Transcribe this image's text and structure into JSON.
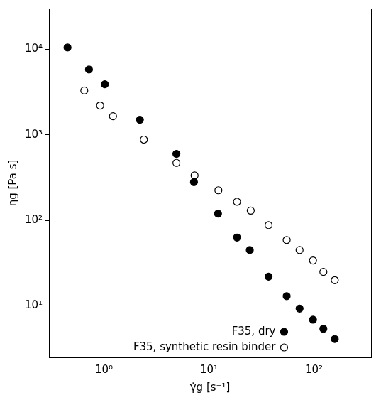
{
  "chart_data": {
    "type": "scatter",
    "x_label": "γ̇g [s⁻¹]",
    "y_label": "ηg [Pa s]",
    "log": true,
    "grid": false,
    "legend": "lower right",
    "xlim": [
      0.3,
      350
    ],
    "ylim": [
      2.5,
      30000
    ],
    "xticks": [
      {
        "value": 1,
        "label": "10⁰"
      },
      {
        "value": 10,
        "label": "10¹"
      },
      {
        "value": 100,
        "label": "10²"
      }
    ],
    "yticks": [
      {
        "value": 10,
        "label": "10¹"
      },
      {
        "value": 100,
        "label": "10²"
      },
      {
        "value": 1000,
        "label": "10³"
      },
      {
        "value": 10000,
        "label": "10⁴"
      }
    ],
    "series": [
      {
        "name": "F35, dry",
        "color": "#000000",
        "marker": "circle",
        "x": [
          0.45,
          0.72,
          1.02,
          2.2,
          4.9,
          7.2,
          12.2,
          18.5,
          24.5,
          37,
          55,
          73,
          98,
          123,
          158
        ],
        "values": [
          10500,
          5800,
          3900,
          1500,
          600,
          280,
          120,
          63,
          45,
          22,
          13,
          9.3,
          6.9,
          5.4,
          4.1
        ]
      },
      {
        "name": "F35, synthetic resin binder",
        "color": "#000000",
        "marker": "open_circle",
        "x": [
          0.65,
          0.92,
          1.22,
          2.4,
          4.9,
          7.3,
          12.3,
          18.5,
          25,
          37,
          55,
          73,
          98,
          123,
          158
        ],
        "values": [
          3300,
          2200,
          1650,
          880,
          470,
          335,
          225,
          165,
          130,
          88,
          59,
          45,
          34,
          25,
          20
        ]
      }
    ]
  }
}
